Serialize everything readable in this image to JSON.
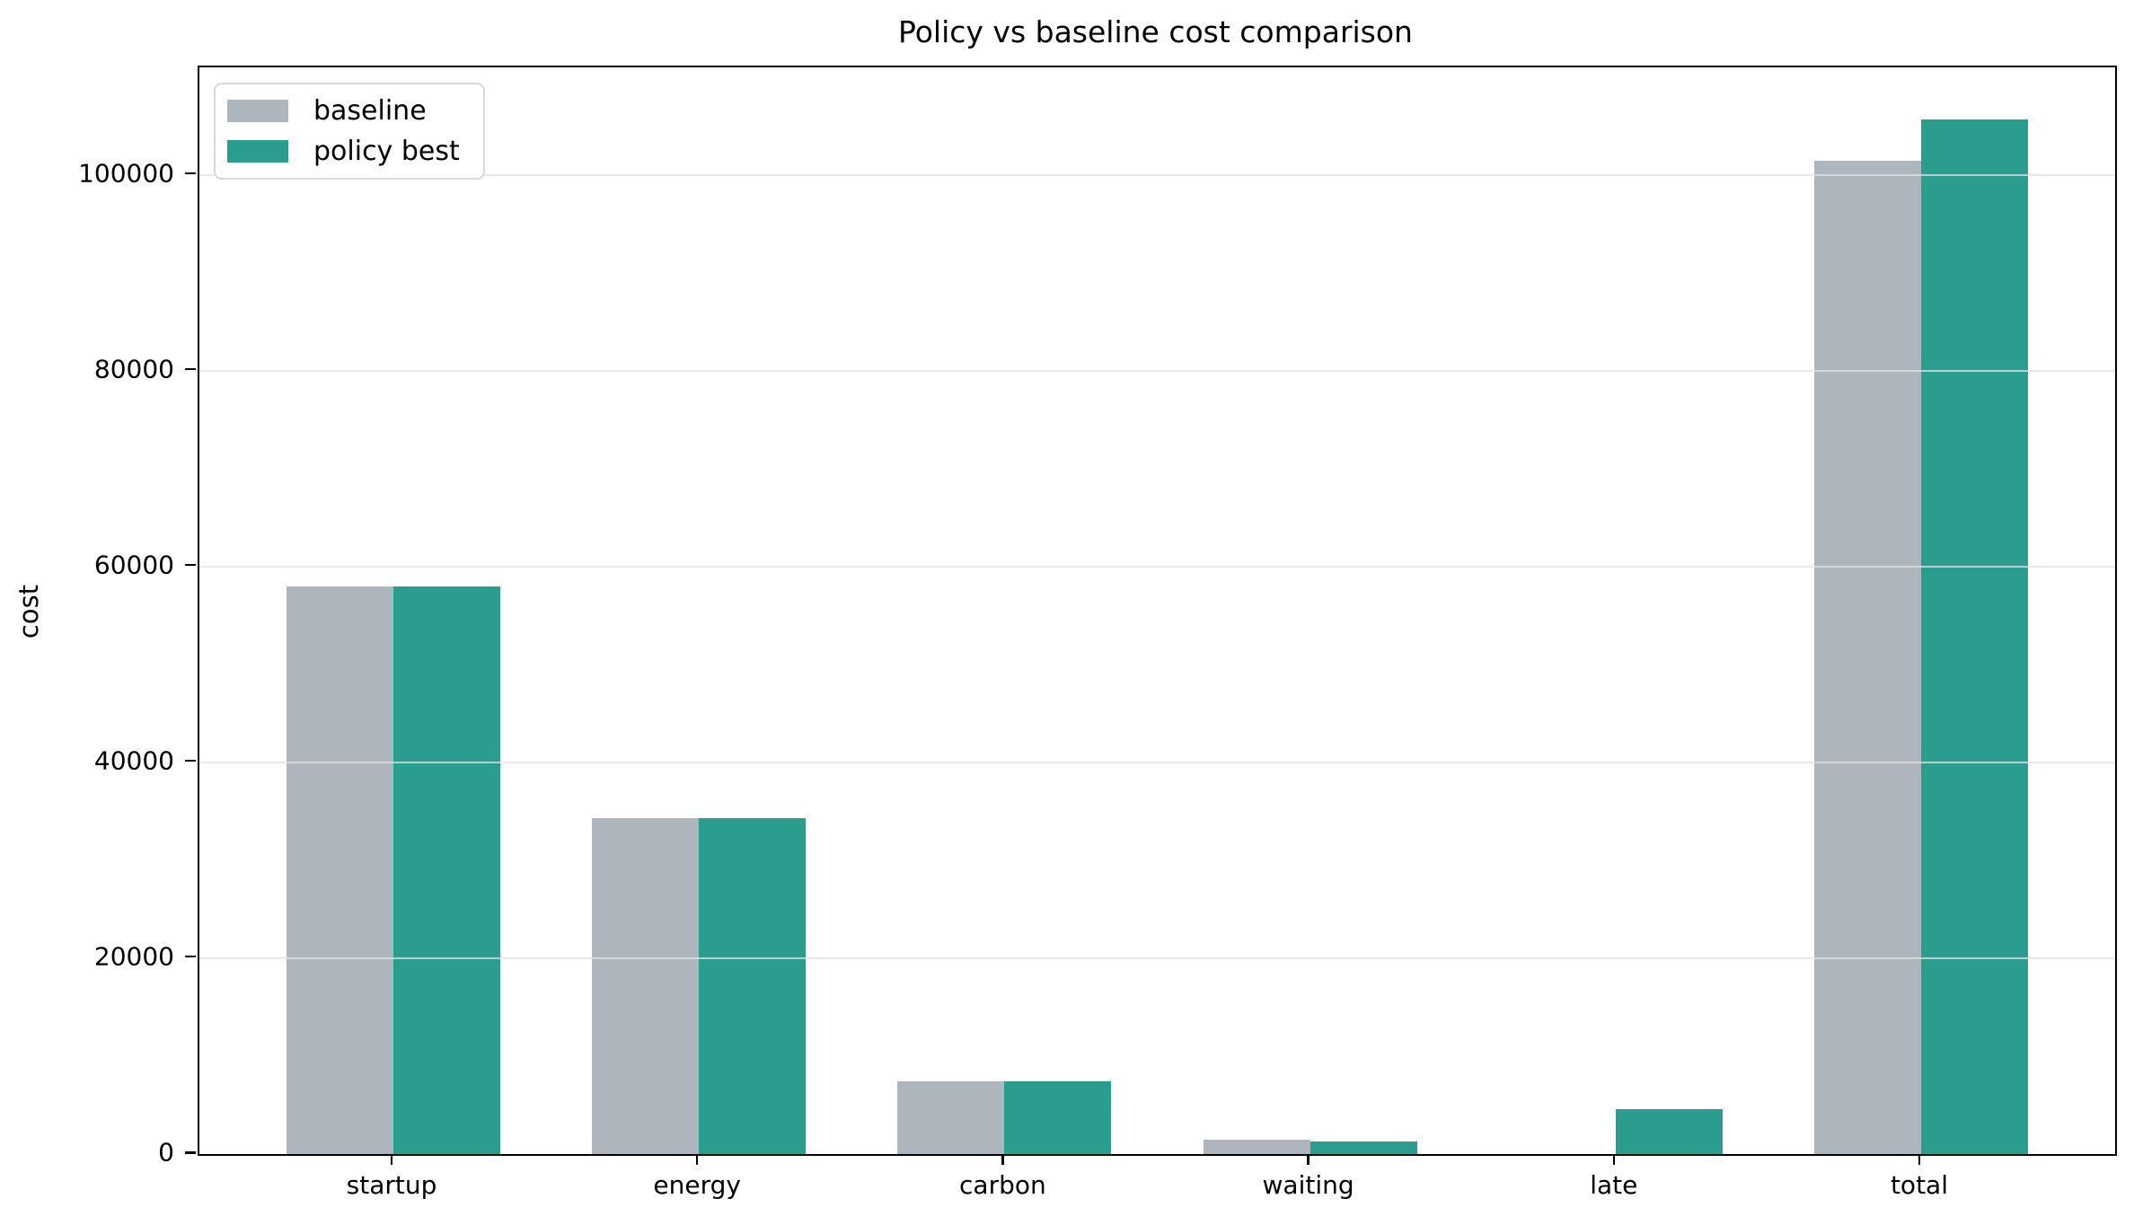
{
  "chart_data": {
    "type": "bar",
    "title": "Policy vs baseline cost comparison",
    "xlabel": "",
    "ylabel": "cost",
    "categories": [
      "startup",
      "energy",
      "carbon",
      "waiting",
      "late",
      "total"
    ],
    "series": [
      {
        "name": "baseline",
        "color": "#aeb6bd",
        "values": [
          58000,
          34300,
          7400,
          1500,
          0,
          101500
        ]
      },
      {
        "name": "policy best",
        "color": "#2a9d8f",
        "values": [
          58000,
          34300,
          7400,
          1250,
          4600,
          105700
        ]
      }
    ],
    "ylim": [
      0,
      111000
    ],
    "yticks": [
      0,
      20000,
      40000,
      60000,
      80000,
      100000
    ],
    "ytick_labels": [
      "0",
      "20000",
      "40000",
      "60000",
      "80000",
      "100000"
    ],
    "xlim": [
      -0.635,
      5.635
    ],
    "bar_width": 0.35,
    "grid": true,
    "grid_axis": "y",
    "legend_position": "upper left",
    "background_color": "#ffffff",
    "axis_color": "#000000"
  }
}
